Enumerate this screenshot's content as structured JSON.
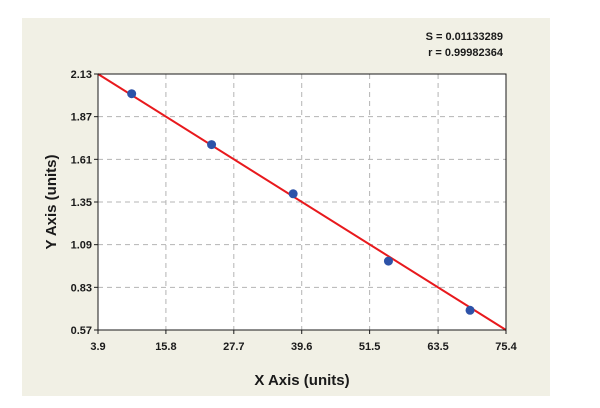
{
  "colors": {
    "panel_background": "#f1f0e5",
    "plot_background": "#ffffff",
    "fit_line": "#e8191d",
    "points": "#2d52a8",
    "grid": "#b4b4b4",
    "text": "#1a1a1a"
  },
  "chart_data": {
    "type": "scatter",
    "title": "",
    "xlabel": "X Axis (units)",
    "ylabel": "Y Axis (units)",
    "xlim": [
      3.9,
      75.4
    ],
    "ylim": [
      0.57,
      2.13
    ],
    "x_ticks": [
      "3.9",
      "15.8",
      "27.7",
      "39.6",
      "51.5",
      "63.5",
      "75.4"
    ],
    "y_ticks": [
      "0.57",
      "0.83",
      "1.09",
      "1.35",
      "1.61",
      "1.87",
      "2.13"
    ],
    "grid": true,
    "grid_style": "dashed",
    "legend": "none",
    "annotations": [
      "S = 0.01133289",
      "r = 0.99982364"
    ],
    "points": {
      "x": [
        9.8,
        23.8,
        38.1,
        54.8,
        69.1
      ],
      "y": [
        2.01,
        1.7,
        1.4,
        0.99,
        0.69
      ]
    },
    "fit_line": {
      "x": [
        3.9,
        75.4
      ],
      "y": [
        2.13,
        0.57
      ]
    }
  }
}
